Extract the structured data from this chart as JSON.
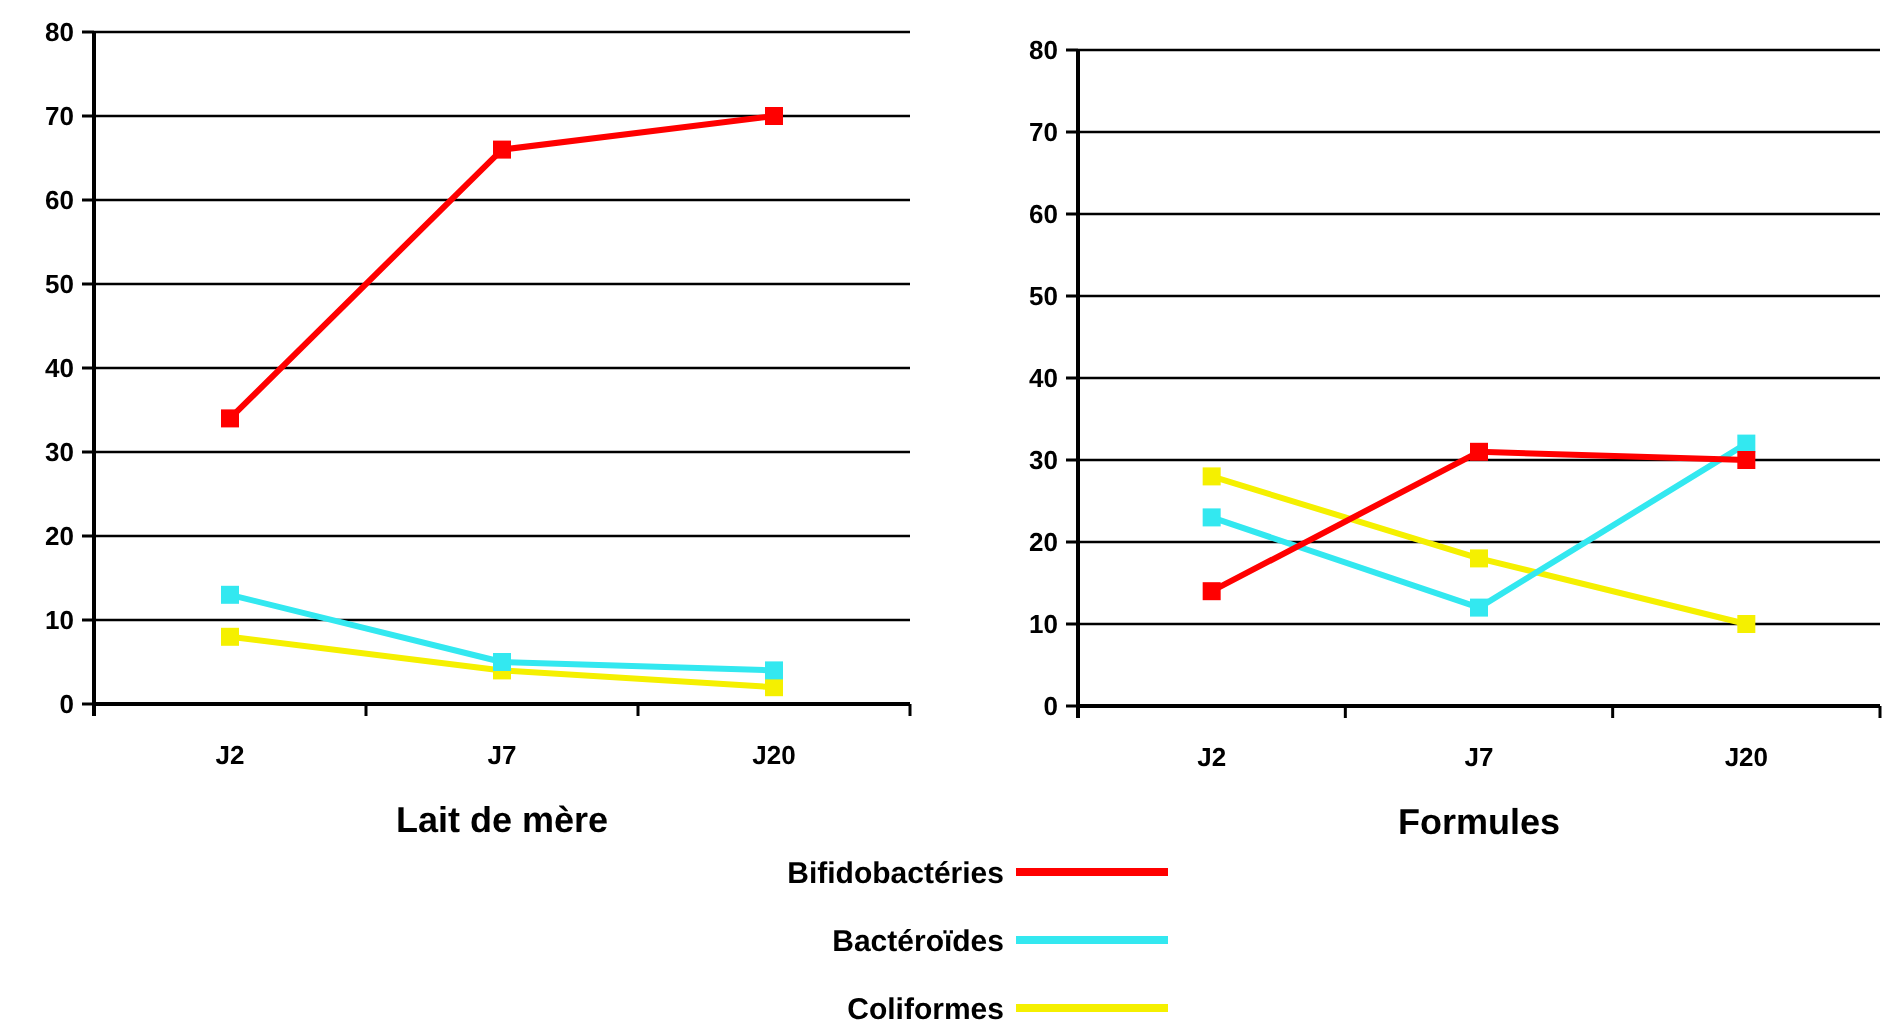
{
  "chart_data": [
    {
      "type": "line",
      "xlabel": "Lait de mère",
      "categories": [
        "J2",
        "J7",
        "J20"
      ],
      "ylim": [
        0,
        80
      ],
      "yticks": [
        0,
        10,
        20,
        30,
        40,
        50,
        60,
        70,
        80
      ],
      "grid": "y",
      "marker": "square",
      "legend": "bottom",
      "series": [
        {
          "name": "Bifidobactéries",
          "color": "#ff0000",
          "values": [
            34,
            66,
            70
          ]
        },
        {
          "name": "Bactéroïdes",
          "color": "#33e8f0",
          "values": [
            13,
            5,
            4
          ]
        },
        {
          "name": "Coliformes",
          "color": "#f5f000",
          "values": [
            8,
            4,
            2
          ]
        }
      ]
    },
    {
      "type": "line",
      "xlabel": "Formules",
      "categories": [
        "J2",
        "J7",
        "J20"
      ],
      "ylim": [
        0,
        80
      ],
      "yticks": [
        0,
        10,
        20,
        30,
        40,
        50,
        60,
        70,
        80
      ],
      "grid": "y",
      "marker": "square",
      "series": [
        {
          "color": "#ff0000",
          "values": [
            14,
            31,
            30
          ]
        },
        {
          "color": "#33e8f0",
          "values": [
            23,
            12,
            32
          ]
        },
        {
          "color": "#f5f000",
          "values": [
            28,
            18,
            10
          ]
        }
      ]
    }
  ]
}
